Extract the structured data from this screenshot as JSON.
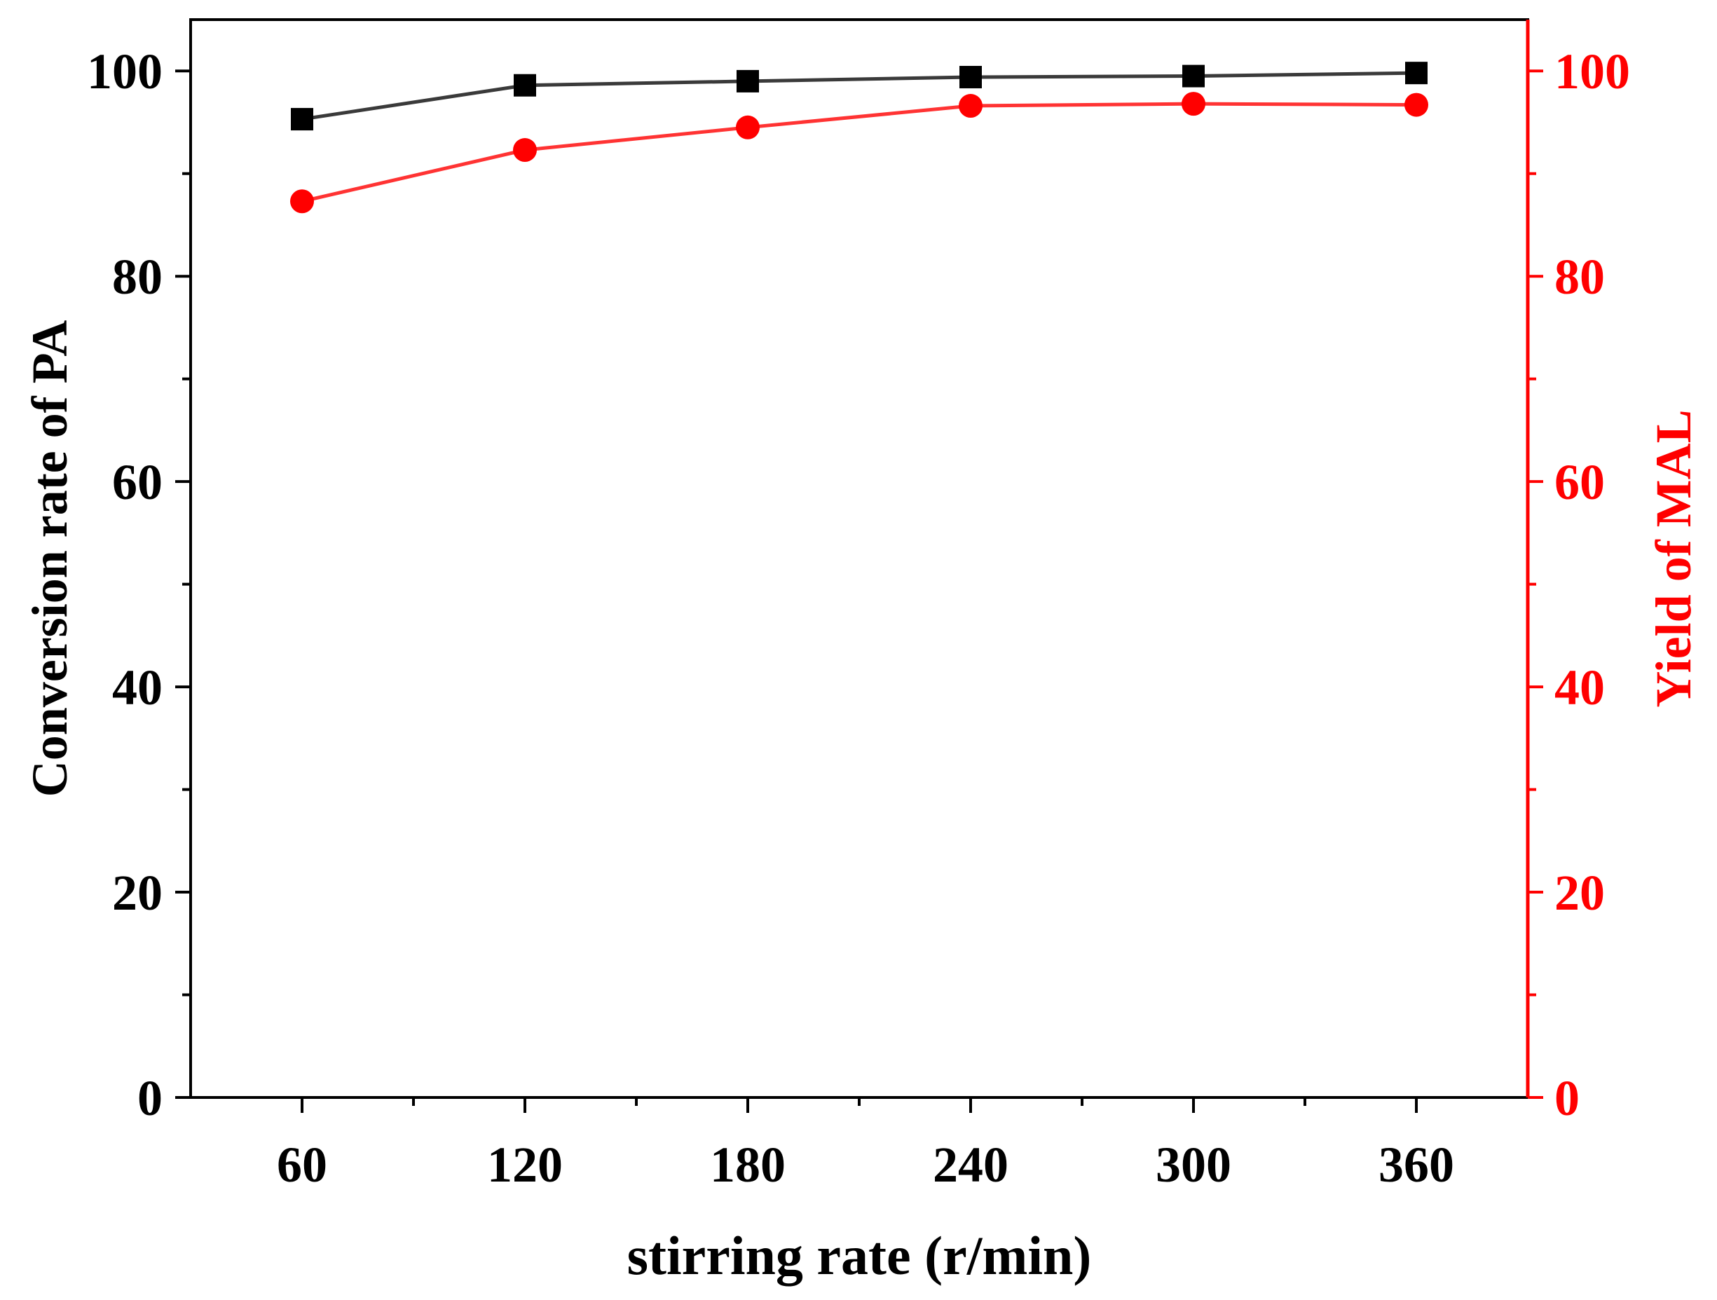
{
  "chart_data": {
    "type": "line",
    "title": "",
    "xlabel": "stirring rate (r/min)",
    "ylabel": "Conversion rate of PA",
    "ylabel_right": "Yield of MAL",
    "x": [
      60,
      120,
      180,
      240,
      300,
      360
    ],
    "xlim": [
      30,
      390
    ],
    "x_ticks": [
      "60",
      "120",
      "180",
      "240",
      "300",
      "360"
    ],
    "ylim": [
      0,
      105
    ],
    "ylim_right": [
      0,
      105
    ],
    "y_ticks": [
      "0",
      "20",
      "40",
      "60",
      "80",
      "100"
    ],
    "y_ticks_right": [
      "0",
      "20",
      "40",
      "60",
      "80",
      "100"
    ],
    "grid": false,
    "legend": "none",
    "series": [
      {
        "name": "Conversion rate of PA",
        "axis": "left",
        "marker": "square",
        "color": "#000000",
        "line_color": "#3a3a3a",
        "values": [
          95.3,
          98.6,
          99.0,
          99.4,
          99.5,
          99.8
        ]
      },
      {
        "name": "Yield of MAL",
        "axis": "right",
        "marker": "circle",
        "color": "#ff0000",
        "line_color": "#ff3333",
        "values": [
          87.3,
          92.3,
          94.5,
          96.6,
          96.8,
          96.7
        ]
      }
    ],
    "colors": {
      "left_axis": "#000000",
      "right_axis": "#ff0000"
    }
  }
}
